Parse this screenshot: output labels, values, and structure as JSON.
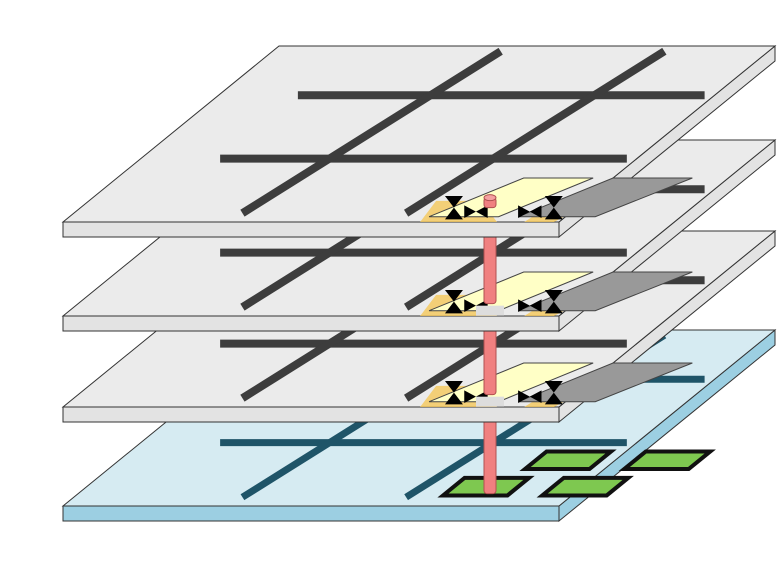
{
  "diagram": {
    "layers": [
      {
        "kind": "base",
        "top_color": "#d6ebf2",
        "side_color": "#9ccfe2",
        "line_color": "#1f5468",
        "edge_color": "#333333"
      },
      {
        "kind": "tier",
        "top_color": "#ebebeb",
        "side_color": "#e3e3e3",
        "line_color": "#3d3d3d",
        "edge_color": "#333333"
      },
      {
        "kind": "tier",
        "top_color": "#ebebeb",
        "side_color": "#e3e3e3",
        "line_color": "#3d3d3d",
        "edge_color": "#333333"
      },
      {
        "kind": "tier",
        "top_color": "#ebebeb",
        "side_color": "#e3e3e3",
        "line_color": "#3d3d3d",
        "edge_color": "#333333"
      }
    ],
    "colors": {
      "pad_yellow": "#ffffc6",
      "pad_gray": "#999999",
      "glow": "#f5c85a",
      "via": "#f08080",
      "via_edge": "#b05050",
      "green_pad": "#7ec850",
      "green_pad_edge": "#111111",
      "spacer": "#dddddd"
    },
    "icons": [
      "bowtie-antenna-icon",
      "via-pillar-icon",
      "green-pad-icon"
    ]
  }
}
